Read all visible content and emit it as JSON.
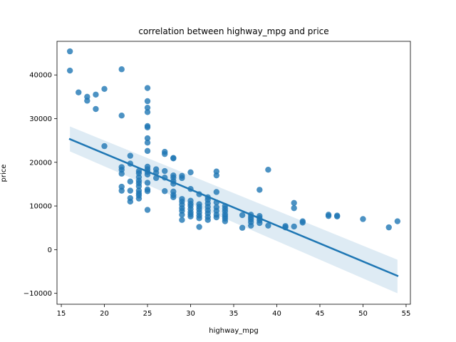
{
  "chart_data": {
    "type": "scatter",
    "title": "correlation between highway_mpg and price",
    "xlabel": "highway_mpg",
    "ylabel": "price",
    "xlim": [
      14.5,
      55.5
    ],
    "ylim": [
      -12500,
      47700
    ],
    "xticks": [
      15,
      20,
      25,
      30,
      35,
      40,
      45,
      50,
      55
    ],
    "yticks": [
      -10000,
      0,
      10000,
      20000,
      30000,
      40000
    ],
    "grid": false,
    "legend": "none",
    "point_color": "#1f77b4",
    "regression": {
      "x": [
        16,
        54
      ],
      "y": [
        25300,
        -6000
      ],
      "ci_lower": [
        22500,
        -10000
      ],
      "ci_upper": [
        28200,
        -2300
      ],
      "color": "#1f77b4"
    },
    "points": [
      [
        16,
        45400
      ],
      [
        16,
        41000
      ],
      [
        17,
        36000
      ],
      [
        18,
        35000
      ],
      [
        18,
        34100
      ],
      [
        19,
        35500
      ],
      [
        19,
        32200
      ],
      [
        20,
        36800
      ],
      [
        20,
        23700
      ],
      [
        22,
        41300
      ],
      [
        22,
        30700
      ],
      [
        22,
        18900
      ],
      [
        22,
        18300
      ],
      [
        22,
        17400
      ],
      [
        22,
        14400
      ],
      [
        22,
        13500
      ],
      [
        23,
        21500
      ],
      [
        23,
        19700
      ],
      [
        23,
        15600
      ],
      [
        23,
        13500
      ],
      [
        23,
        11800
      ],
      [
        23,
        11000
      ],
      [
        24,
        18000
      ],
      [
        24,
        17500
      ],
      [
        24,
        16600
      ],
      [
        24,
        15800
      ],
      [
        24,
        15200
      ],
      [
        24,
        14500
      ],
      [
        24,
        13500
      ],
      [
        24,
        12900
      ],
      [
        24,
        12400
      ],
      [
        24,
        11700
      ],
      [
        25,
        37000
      ],
      [
        25,
        34000
      ],
      [
        25,
        32500
      ],
      [
        25,
        31500
      ],
      [
        25,
        28300
      ],
      [
        25,
        28000
      ],
      [
        25,
        25500
      ],
      [
        25,
        24500
      ],
      [
        25,
        22600
      ],
      [
        25,
        19000
      ],
      [
        25,
        18400
      ],
      [
        25,
        17800
      ],
      [
        25,
        17200
      ],
      [
        25,
        15300
      ],
      [
        25,
        13800
      ],
      [
        25,
        13400
      ],
      [
        25,
        9100
      ],
      [
        26,
        18400
      ],
      [
        26,
        17600
      ],
      [
        26,
        16400
      ],
      [
        27,
        22400
      ],
      [
        27,
        21900
      ],
      [
        27,
        18000
      ],
      [
        27,
        16500
      ],
      [
        27,
        13400
      ],
      [
        28,
        21000
      ],
      [
        28,
        20900
      ],
      [
        28,
        17000
      ],
      [
        28,
        16500
      ],
      [
        28,
        15700
      ],
      [
        28,
        15100
      ],
      [
        28,
        13300
      ],
      [
        28,
        12500
      ],
      [
        28,
        12000
      ],
      [
        29,
        16900
      ],
      [
        29,
        16400
      ],
      [
        29,
        11600
      ],
      [
        29,
        11000
      ],
      [
        29,
        10300
      ],
      [
        29,
        9500
      ],
      [
        29,
        8900
      ],
      [
        29,
        8000
      ],
      [
        29,
        6800
      ],
      [
        30,
        17700
      ],
      [
        30,
        13900
      ],
      [
        30,
        11200
      ],
      [
        30,
        10500
      ],
      [
        30,
        10000
      ],
      [
        30,
        9300
      ],
      [
        30,
        8600
      ],
      [
        30,
        8100
      ],
      [
        30,
        7600
      ],
      [
        31,
        12700
      ],
      [
        31,
        10400
      ],
      [
        31,
        9800
      ],
      [
        31,
        9200
      ],
      [
        31,
        8500
      ],
      [
        31,
        7800
      ],
      [
        31,
        7200
      ],
      [
        31,
        5200
      ],
      [
        32,
        12000
      ],
      [
        32,
        11400
      ],
      [
        32,
        10600
      ],
      [
        32,
        9800
      ],
      [
        32,
        9000
      ],
      [
        32,
        8300
      ],
      [
        32,
        7500
      ],
      [
        32,
        6800
      ],
      [
        33,
        17900
      ],
      [
        33,
        17000
      ],
      [
        33,
        13200
      ],
      [
        33,
        10800
      ],
      [
        33,
        9700
      ],
      [
        33,
        8900
      ],
      [
        33,
        8000
      ],
      [
        33,
        7400
      ],
      [
        34,
        10000
      ],
      [
        34,
        9400
      ],
      [
        34,
        8800
      ],
      [
        34,
        8100
      ],
      [
        34,
        7600
      ],
      [
        34,
        7100
      ],
      [
        34,
        6500
      ],
      [
        36,
        7900
      ],
      [
        36,
        5000
      ],
      [
        37,
        8000
      ],
      [
        37,
        7400
      ],
      [
        37,
        6900
      ],
      [
        37,
        6300
      ],
      [
        37,
        5500
      ],
      [
        38,
        13700
      ],
      [
        38,
        7700
      ],
      [
        38,
        7200
      ],
      [
        38,
        6700
      ],
      [
        38,
        6100
      ],
      [
        39,
        18300
      ],
      [
        39,
        5500
      ],
      [
        41,
        5400
      ],
      [
        41,
        5100
      ],
      [
        42,
        10700
      ],
      [
        42,
        9500
      ],
      [
        42,
        5300
      ],
      [
        43,
        6500
      ],
      [
        43,
        6200
      ],
      [
        46,
        8000
      ],
      [
        46,
        7700
      ],
      [
        47,
        7800
      ],
      [
        47,
        7600
      ],
      [
        50,
        7000
      ],
      [
        53,
        5100
      ],
      [
        54,
        6500
      ]
    ]
  }
}
